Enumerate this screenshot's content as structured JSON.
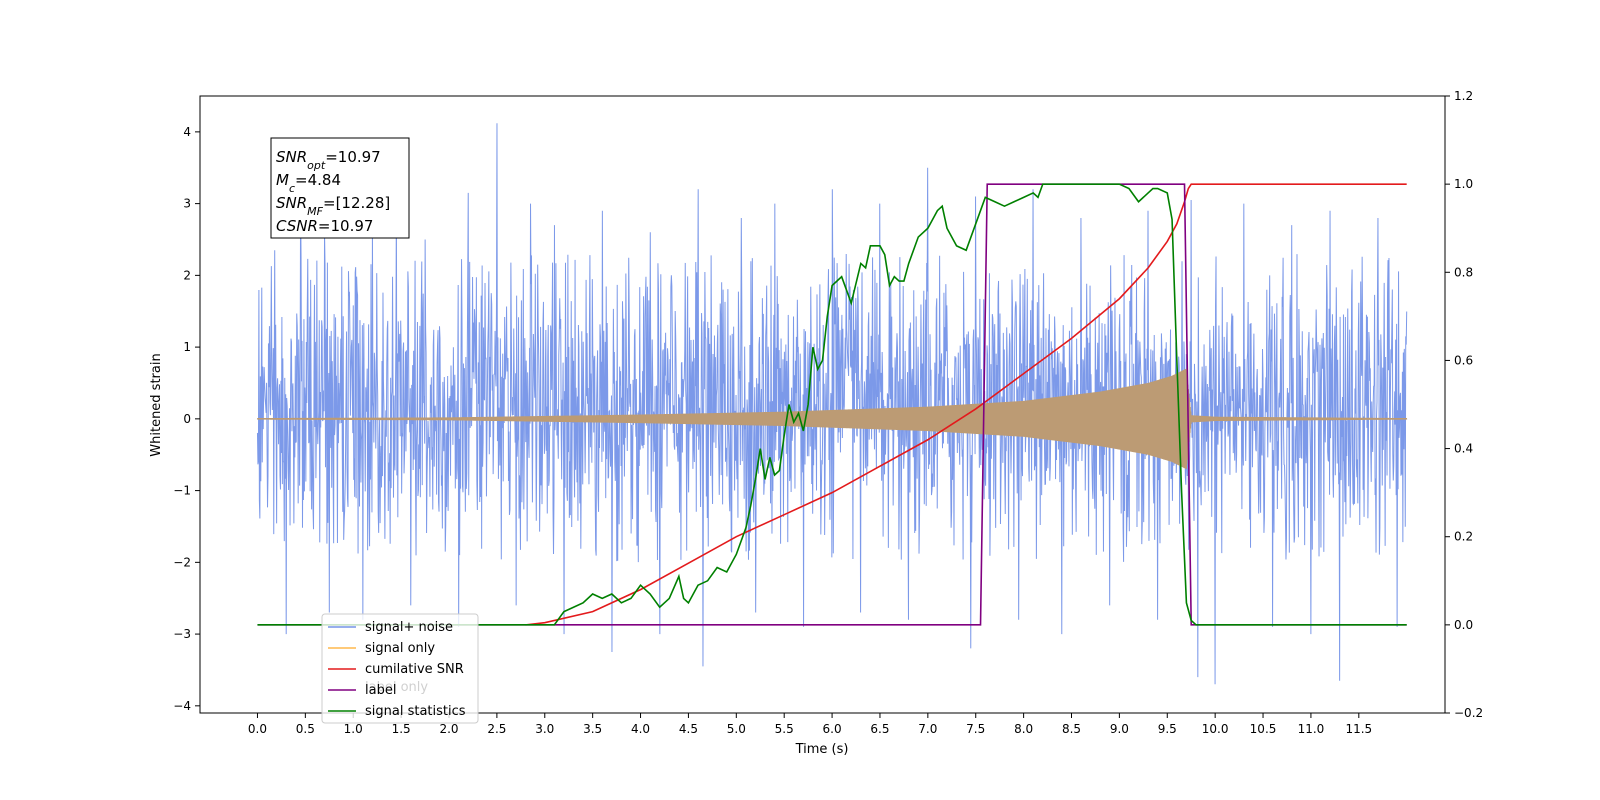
{
  "chart_data": {
    "type": "line",
    "xlabel": "Time (s)",
    "ylabel": "Whitened strain",
    "xlim": [
      -0.6,
      12.4
    ],
    "ylim": [
      -4.1,
      4.5
    ],
    "y2lim": [
      -0.2,
      1.2
    ],
    "x_ticks": [
      0.0,
      0.5,
      1.0,
      1.5,
      2.0,
      2.5,
      3.0,
      3.5,
      4.0,
      4.5,
      5.0,
      5.5,
      6.0,
      6.5,
      7.0,
      7.5,
      8.0,
      8.5,
      9.0,
      9.5,
      10.0,
      10.5,
      11.0,
      11.5
    ],
    "x_tick_labels": [
      "0.0",
      "0.5",
      "1.0",
      "1.5",
      "2.0",
      "2.5",
      "3.0",
      "3.5",
      "4.0",
      "4.5",
      "5.0",
      "5.5",
      "6.0",
      "6.5",
      "7.0",
      "7.5",
      "8.0",
      "8.5",
      "9.0",
      "9.5",
      "10.0",
      "10.5",
      "11.0",
      "11.5"
    ],
    "y_ticks": [
      -4,
      -3,
      -2,
      -1,
      0,
      1,
      2,
      3,
      4
    ],
    "y_tick_labels": [
      "−4",
      "−3",
      "−2",
      "−1",
      "0",
      "1",
      "2",
      "3",
      "4"
    ],
    "y2_ticks": [
      -0.2,
      0.0,
      0.2,
      0.4,
      0.6,
      0.8,
      1.0,
      1.2
    ],
    "y2_tick_labels": [
      "−0.2",
      "0.0",
      "0.2",
      "0.4",
      "0.6",
      "0.8",
      "1.0",
      "1.2"
    ],
    "grid": false,
    "legend_placement": "lower-left",
    "annotation": {
      "lines": [
        {
          "base": "SNR",
          "sub": "opt",
          "value": "=10.97"
        },
        {
          "base": "M",
          "sub": "c",
          "value": "=4.84"
        },
        {
          "base": "SNR",
          "sub": "MF",
          "value": "=[12.28]"
        },
        {
          "base": "CSNR",
          "sub": "",
          "value": "=10.97"
        }
      ]
    },
    "series": [
      {
        "name": "signal+ noise",
        "color": "#7593e8",
        "axis": "left",
        "style": "dense-noise",
        "x_range": [
          0.0,
          12.0
        ],
        "envelope_typical": [
          -1.7,
          2.0
        ],
        "spikes": [
          {
            "x": 0.18,
            "y": 2.35
          },
          {
            "x": 0.45,
            "y": 3.0
          },
          {
            "x": 0.7,
            "y": 2.6
          },
          {
            "x": 1.2,
            "y": 2.7
          },
          {
            "x": 1.45,
            "y": 3.1
          },
          {
            "x": 1.75,
            "y": 2.5
          },
          {
            "x": 2.2,
            "y": 3.15
          },
          {
            "x": 2.5,
            "y": 4.12
          },
          {
            "x": 2.85,
            "y": 3.0
          },
          {
            "x": 3.1,
            "y": 2.7
          },
          {
            "x": 3.6,
            "y": 2.9
          },
          {
            "x": 4.1,
            "y": 2.6
          },
          {
            "x": 4.6,
            "y": 3.2
          },
          {
            "x": 5.05,
            "y": 2.8
          },
          {
            "x": 5.4,
            "y": 3.0
          },
          {
            "x": 6.0,
            "y": 3.2
          },
          {
            "x": 6.5,
            "y": 3.0
          },
          {
            "x": 7.0,
            "y": 3.5
          },
          {
            "x": 7.5,
            "y": 3.1
          },
          {
            "x": 8.1,
            "y": 3.2
          },
          {
            "x": 8.6,
            "y": 2.8
          },
          {
            "x": 9.3,
            "y": 2.9
          },
          {
            "x": 9.75,
            "y": 3.05
          },
          {
            "x": 10.3,
            "y": 3.0
          },
          {
            "x": 10.8,
            "y": 2.7
          },
          {
            "x": 11.2,
            "y": 2.9
          },
          {
            "x": 11.7,
            "y": 2.8
          },
          {
            "x": 0.3,
            "y": -3.0
          },
          {
            "x": 0.75,
            "y": -2.7
          },
          {
            "x": 1.1,
            "y": -2.8
          },
          {
            "x": 1.6,
            "y": -2.6
          },
          {
            "x": 2.1,
            "y": -2.9
          },
          {
            "x": 2.7,
            "y": -2.6
          },
          {
            "x": 3.2,
            "y": -3.0
          },
          {
            "x": 3.7,
            "y": -3.25
          },
          {
            "x": 4.2,
            "y": -3.0
          },
          {
            "x": 4.65,
            "y": -3.45
          },
          {
            "x": 5.2,
            "y": -2.7
          },
          {
            "x": 5.7,
            "y": -2.9
          },
          {
            "x": 6.3,
            "y": -2.7
          },
          {
            "x": 6.8,
            "y": -2.8
          },
          {
            "x": 7.45,
            "y": -3.2
          },
          {
            "x": 7.95,
            "y": -2.8
          },
          {
            "x": 8.4,
            "y": -3.0
          },
          {
            "x": 8.9,
            "y": -2.6
          },
          {
            "x": 9.4,
            "y": -2.8
          },
          {
            "x": 9.82,
            "y": -3.6
          },
          {
            "x": 10.0,
            "y": -3.7
          },
          {
            "x": 10.6,
            "y": -2.9
          },
          {
            "x": 11.0,
            "y": -3.0
          },
          {
            "x": 11.3,
            "y": -3.65
          },
          {
            "x": 11.9,
            "y": -2.9
          }
        ]
      },
      {
        "name": "signal only",
        "color": "#ffb84d",
        "axis": "left",
        "style": "chirp",
        "x_range": [
          0.0,
          12.0
        ],
        "amplitude_points": [
          {
            "x": 0.0,
            "y": 0.01
          },
          {
            "x": 2.0,
            "y": 0.02
          },
          {
            "x": 4.0,
            "y": 0.06
          },
          {
            "x": 5.5,
            "y": 0.1
          },
          {
            "x": 7.0,
            "y": 0.17
          },
          {
            "x": 8.0,
            "y": 0.25
          },
          {
            "x": 8.8,
            "y": 0.38
          },
          {
            "x": 9.3,
            "y": 0.5
          },
          {
            "x": 9.55,
            "y": 0.6
          },
          {
            "x": 9.7,
            "y": 0.7
          },
          {
            "x": 9.75,
            "y": 0.05
          },
          {
            "x": 10.0,
            "y": 0.03
          },
          {
            "x": 12.0,
            "y": 0.01
          }
        ]
      },
      {
        "name": "cumilative SNR",
        "color": "#e31a1c",
        "axis": "right",
        "x": [
          2.8,
          3.0,
          3.5,
          4.0,
          4.5,
          5.0,
          5.5,
          6.0,
          6.5,
          7.0,
          7.5,
          8.0,
          8.5,
          9.0,
          9.3,
          9.5,
          9.6,
          9.68,
          9.72,
          9.75,
          10.0,
          11.0,
          12.0
        ],
        "values": [
          0.0,
          0.005,
          0.03,
          0.08,
          0.14,
          0.2,
          0.25,
          0.3,
          0.36,
          0.42,
          0.49,
          0.57,
          0.65,
          0.74,
          0.81,
          0.87,
          0.91,
          0.96,
          0.99,
          1.0,
          1.0,
          1.0,
          1.0
        ]
      },
      {
        "name": "label",
        "color": "#800080",
        "axis": "right",
        "x": [
          0.0,
          7.55,
          7.62,
          9.68,
          9.75,
          12.0
        ],
        "values": [
          0.0,
          0.0,
          1.0,
          1.0,
          0.0,
          0.0
        ]
      },
      {
        "name": "signal statistics",
        "color": "#008000",
        "axis": "right",
        "x": [
          0.0,
          3.1,
          3.2,
          3.3,
          3.4,
          3.5,
          3.6,
          3.7,
          3.8,
          3.9,
          4.0,
          4.1,
          4.2,
          4.3,
          4.4,
          4.45,
          4.5,
          4.6,
          4.7,
          4.8,
          4.9,
          5.0,
          5.1,
          5.15,
          5.2,
          5.25,
          5.3,
          5.35,
          5.4,
          5.45,
          5.5,
          5.55,
          5.6,
          5.65,
          5.7,
          5.75,
          5.8,
          5.85,
          5.9,
          5.95,
          6.0,
          6.05,
          6.1,
          6.2,
          6.3,
          6.35,
          6.4,
          6.5,
          6.55,
          6.6,
          6.65,
          6.7,
          6.75,
          6.8,
          6.9,
          7.0,
          7.1,
          7.15,
          7.2,
          7.3,
          7.4,
          7.5,
          7.6,
          7.7,
          7.8,
          7.9,
          8.0,
          8.1,
          8.15,
          8.2,
          8.3,
          8.5,
          8.8,
          9.0,
          9.1,
          9.2,
          9.3,
          9.35,
          9.4,
          9.5,
          9.55,
          9.6,
          9.65,
          9.7,
          9.75,
          9.8,
          10.0,
          12.0
        ],
        "values": [
          0.0,
          0.0,
          0.03,
          0.04,
          0.05,
          0.07,
          0.06,
          0.07,
          0.05,
          0.06,
          0.09,
          0.07,
          0.04,
          0.06,
          0.11,
          0.06,
          0.05,
          0.09,
          0.1,
          0.13,
          0.12,
          0.16,
          0.22,
          0.27,
          0.33,
          0.4,
          0.33,
          0.38,
          0.34,
          0.35,
          0.43,
          0.5,
          0.46,
          0.48,
          0.44,
          0.5,
          0.63,
          0.58,
          0.6,
          0.7,
          0.77,
          0.78,
          0.79,
          0.73,
          0.82,
          0.81,
          0.86,
          0.86,
          0.84,
          0.77,
          0.79,
          0.78,
          0.78,
          0.82,
          0.88,
          0.9,
          0.94,
          0.95,
          0.9,
          0.86,
          0.85,
          0.91,
          0.97,
          0.96,
          0.95,
          0.96,
          0.97,
          0.98,
          0.97,
          1.0,
          1.0,
          1.0,
          1.0,
          1.0,
          0.99,
          0.96,
          0.98,
          0.99,
          0.99,
          0.98,
          0.92,
          0.6,
          0.3,
          0.05,
          0.01,
          0.0,
          0.0,
          0.0
        ]
      }
    ],
    "legend_overlay_text": "label only"
  }
}
